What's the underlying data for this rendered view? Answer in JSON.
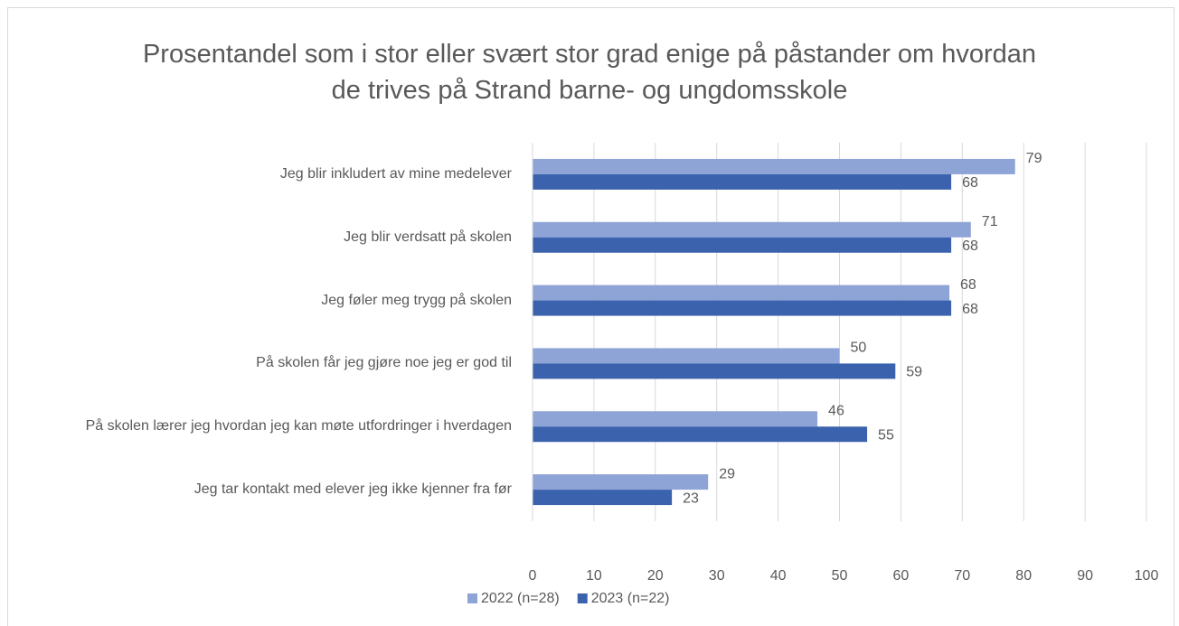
{
  "chart_data": {
    "type": "hbar",
    "title": "Prosentandel som i stor eller svært stor grad enige på påstander om hvordan de trives på Strand barne- og ungdomsskole",
    "categories": [
      "Jeg blir inkludert av mine medelever",
      "Jeg blir verdsatt på skolen",
      "Jeg føler meg trygg på skolen",
      "På skolen får jeg gjøre noe jeg er god til",
      "På skolen lærer jeg hvordan jeg kan møte utfordringer i hverdagen",
      "Jeg tar kontakt med elever jeg ikke kjenner fra før"
    ],
    "series": [
      {
        "name": "2022 (n=28)",
        "color": "#8ea3d6",
        "values": [
          78.6,
          71.4,
          67.9,
          50,
          46.4,
          28.6
        ],
        "value_labels": [
          "79",
          "71",
          "68",
          "50",
          "46",
          "29"
        ]
      },
      {
        "name": "2023 (n=22)",
        "color": "#3a62ad",
        "values": [
          68.2,
          68.2,
          68.2,
          59.1,
          54.5,
          22.7
        ],
        "value_labels": [
          "68",
          "68",
          "68",
          "59",
          "55",
          "23"
        ]
      }
    ],
    "xlim": [
      0,
      100
    ],
    "xticks": [
      0,
      10,
      20,
      30,
      40,
      50,
      60,
      70,
      80,
      90,
      100
    ],
    "grid": true,
    "legend": "bottom"
  }
}
